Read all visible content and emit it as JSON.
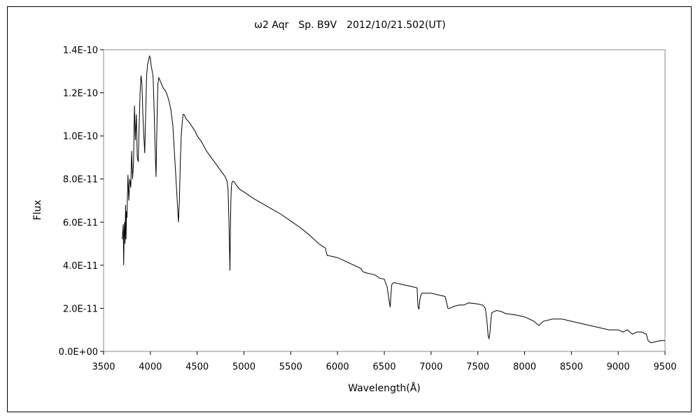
{
  "chart_data": {
    "type": "line",
    "title": "ω2 Aqr　Sp. B9V　2012/10/21.502(UT)",
    "xlabel": "Wavelength(Å)",
    "ylabel": "Flux",
    "xlim": [
      3500,
      9500
    ],
    "ylim": [
      0,
      1.4e-10
    ],
    "xticks": [
      3500,
      4000,
      4500,
      5000,
      5500,
      6000,
      6500,
      7000,
      7500,
      8000,
      8500,
      9000,
      9500
    ],
    "xtick_labels": [
      "3500",
      "4000",
      "4500",
      "5000",
      "5500",
      "6000",
      "6500",
      "7000",
      "7500",
      "8000",
      "8500",
      "9000",
      "9500"
    ],
    "yticks": [
      0,
      2e-11,
      4e-11,
      6e-11,
      8e-11,
      1e-10,
      1.2e-10,
      1.4e-10
    ],
    "ytick_labels": [
      "0.0E+00",
      "2.0E-11",
      "4.0E-11",
      "6.0E-11",
      "8.0E-11",
      "1.0E-10",
      "1.2E-10",
      "1.4E-10"
    ],
    "grid": false,
    "legend": false,
    "line_color": "#000000",
    "series": [
      {
        "x": [
          3700,
          3710,
          3715,
          3720,
          3725,
          3730,
          3735,
          3740,
          3745,
          3750,
          3760,
          3770,
          3780,
          3790,
          3800,
          3810,
          3820,
          3830,
          3840,
          3850,
          3860,
          3870,
          3880,
          3890,
          3900,
          3910,
          3920,
          3930,
          3940,
          3950,
          3960,
          3970,
          3980,
          3990,
          4000,
          4010,
          4020,
          4030,
          4040,
          4050,
          4060,
          4070,
          4080,
          4090,
          4100,
          4110,
          4120,
          4140,
          4160,
          4180,
          4200,
          4220,
          4240,
          4260,
          4280,
          4300,
          4310,
          4320,
          4330,
          4340,
          4345,
          4350,
          4360,
          4370,
          4380,
          4400,
          4420,
          4450,
          4480,
          4500,
          4550,
          4600,
          4650,
          4700,
          4750,
          4800,
          4820,
          4830,
          4840,
          4850,
          4855,
          4860,
          4865,
          4870,
          4880,
          4900,
          4920,
          4940,
          4960,
          5000,
          5050,
          5100,
          5200,
          5300,
          5400,
          5500,
          5600,
          5700,
          5800,
          5850,
          5870,
          5880,
          5890,
          5900,
          6000,
          6100,
          6200,
          6250,
          6270,
          6300,
          6400,
          6450,
          6500,
          6530,
          6550,
          6563,
          6570,
          6580,
          6600,
          6700,
          6800,
          6850,
          6860,
          6870,
          6880,
          6890,
          6900,
          6950,
          7000,
          7050,
          7100,
          7150,
          7180,
          7200,
          7250,
          7300,
          7350,
          7400,
          7500,
          7550,
          7580,
          7600,
          7610,
          7620,
          7630,
          7640,
          7650,
          7700,
          7750,
          7800,
          7900,
          8000,
          8100,
          8150,
          8200,
          8300,
          8400,
          8500,
          8600,
          8700,
          8800,
          8900,
          9000,
          9050,
          9100,
          9150,
          9200,
          9250,
          9300,
          9320,
          9350,
          9400,
          9450,
          9500
        ],
        "y": [
          5.2e-11,
          5.9e-11,
          4e-11,
          5.5e-11,
          6e-11,
          5e-11,
          6.8e-11,
          5.2e-11,
          6.5e-11,
          6.2e-11,
          8.2e-11,
          7e-11,
          8e-11,
          7.6e-11,
          9.3e-11,
          8e-11,
          8.8e-11,
          1.14e-10,
          9.8e-11,
          1.1e-10,
          9e-11,
          8.8e-11,
          1.05e-10,
          1.2e-10,
          1.28e-10,
          1.24e-10,
          1.1e-10,
          1e-10,
          9.2e-11,
          1.12e-10,
          1.28e-10,
          1.33e-10,
          1.35e-10,
          1.37e-10,
          1.36e-10,
          1.32e-10,
          1.3e-10,
          1.27e-10,
          1.12e-10,
          9.5e-11,
          8.1e-11,
          1.05e-10,
          1.24e-10,
          1.27e-10,
          1.26e-10,
          1.25e-10,
          1.24e-10,
          1.22e-10,
          1.21e-10,
          1.19e-10,
          1.16e-10,
          1.12e-10,
          1.05e-10,
          9e-11,
          7.5e-11,
          6e-11,
          7e-11,
          8.8e-11,
          1e-10,
          1.06e-10,
          1.08e-10,
          1.1e-10,
          1.1e-10,
          1.09e-10,
          1.08e-10,
          1.07e-10,
          1.06e-10,
          1.04e-10,
          1.02e-10,
          1e-10,
          9.7e-11,
          9.3e-11,
          9e-11,
          8.7e-11,
          8.4e-11,
          8.1e-11,
          7.9e-11,
          7.5e-11,
          6e-11,
          3.75e-11,
          5.5e-11,
          7e-11,
          7.6e-11,
          7.8e-11,
          7.9e-11,
          7.85e-11,
          7.7e-11,
          7.6e-11,
          7.5e-11,
          7.4e-11,
          7.25e-11,
          7.1e-11,
          6.85e-11,
          6.6e-11,
          6.35e-11,
          6.05e-11,
          5.75e-11,
          5.4e-11,
          5e-11,
          4.85e-11,
          4.8e-11,
          4.6e-11,
          4.45e-11,
          4.45e-11,
          4.35e-11,
          4.15e-11,
          3.95e-11,
          3.85e-11,
          3.7e-11,
          3.65e-11,
          3.55e-11,
          3.4e-11,
          3.35e-11,
          3e-11,
          2.4e-11,
          2.05e-11,
          2.6e-11,
          3.1e-11,
          3.2e-11,
          3.1e-11,
          3e-11,
          2.95e-11,
          2.1e-11,
          1.95e-11,
          2.4e-11,
          2.6e-11,
          2.7e-11,
          2.7e-11,
          2.7e-11,
          2.65e-11,
          2.6e-11,
          2.55e-11,
          2e-11,
          2e-11,
          2.1e-11,
          2.15e-11,
          2.15e-11,
          2.25e-11,
          2.2e-11,
          2.15e-11,
          2e-11,
          1.3e-11,
          7e-12,
          6e-12,
          9e-12,
          1.5e-11,
          1.8e-11,
          1.9e-11,
          1.85e-11,
          1.75e-11,
          1.7e-11,
          1.6e-11,
          1.4e-11,
          1.2e-11,
          1.4e-11,
          1.5e-11,
          1.5e-11,
          1.4e-11,
          1.3e-11,
          1.2e-11,
          1.1e-11,
          1e-11,
          1e-11,
          9e-12,
          1e-11,
          8e-12,
          9e-12,
          9e-12,
          8e-12,
          5e-12,
          4e-12,
          4.5e-12,
          5e-12,
          5e-12
        ]
      }
    ]
  }
}
